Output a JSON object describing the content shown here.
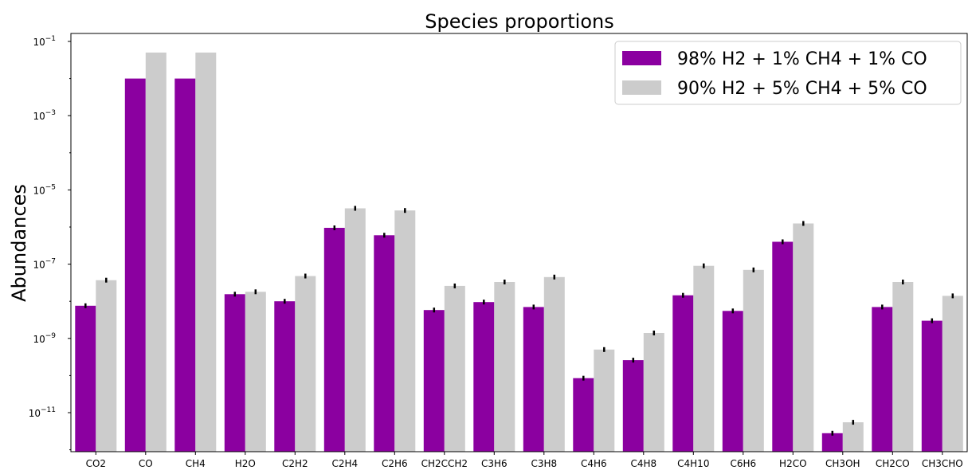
{
  "chart_data": {
    "type": "bar",
    "title": "Species proportions",
    "xlabel": "",
    "ylabel": "Abundances",
    "yscale": "log",
    "ylim": [
      1e-12,
      0.1
    ],
    "yticks": [
      {
        "value": 1e-11,
        "base": "10",
        "exp": "−11"
      },
      {
        "value": 1e-09,
        "base": "10",
        "exp": "−9"
      },
      {
        "value": 1e-07,
        "base": "10",
        "exp": "−7"
      },
      {
        "value": 1e-05,
        "base": "10",
        "exp": "−5"
      },
      {
        "value": 0.001,
        "base": "10",
        "exp": "−3"
      },
      {
        "value": 0.1,
        "base": "10",
        "exp": "−1"
      }
    ],
    "grid": false,
    "legend_position": "top-right",
    "categories": [
      "CO2",
      "CO",
      "CH4",
      "H2O",
      "C2H2",
      "C2H4",
      "C2H6",
      "CH2CCH2",
      "C3H6",
      "C3H8",
      "C4H6",
      "C4H8",
      "C4H10",
      "C6H6",
      "H2CO",
      "CH3OH",
      "CH2CO",
      "CH3CHO"
    ],
    "series": [
      {
        "name": "98% H2 + 1% CH4 + 1% CO",
        "color": "#8b00a0",
        "values": [
          7.6e-09,
          0.01,
          0.01,
          1.55e-08,
          1e-08,
          9.5e-07,
          6e-07,
          5.8e-09,
          9.5e-09,
          7e-09,
          8.5e-11,
          2.6e-10,
          1.45e-08,
          5.5e-09,
          4e-07,
          2.8e-12,
          7e-09,
          3e-09
        ],
        "errors": [
          true,
          false,
          false,
          true,
          true,
          true,
          true,
          true,
          true,
          true,
          true,
          true,
          true,
          true,
          true,
          true,
          true,
          true
        ]
      },
      {
        "name": "90% H2 + 5% CH4 + 5% CO",
        "color": "#cccccc",
        "values": [
          3.7e-08,
          0.05,
          0.05,
          1.8e-08,
          4.8e-08,
          3.2e-06,
          2.8e-06,
          2.6e-08,
          3.3e-08,
          4.5e-08,
          5e-10,
          1.4e-09,
          9e-08,
          7e-08,
          1.25e-06,
          5.5e-12,
          3.3e-08,
          1.4e-08
        ],
        "errors": [
          true,
          false,
          false,
          true,
          true,
          true,
          true,
          true,
          true,
          true,
          true,
          true,
          true,
          true,
          true,
          true,
          true,
          true
        ]
      }
    ]
  }
}
